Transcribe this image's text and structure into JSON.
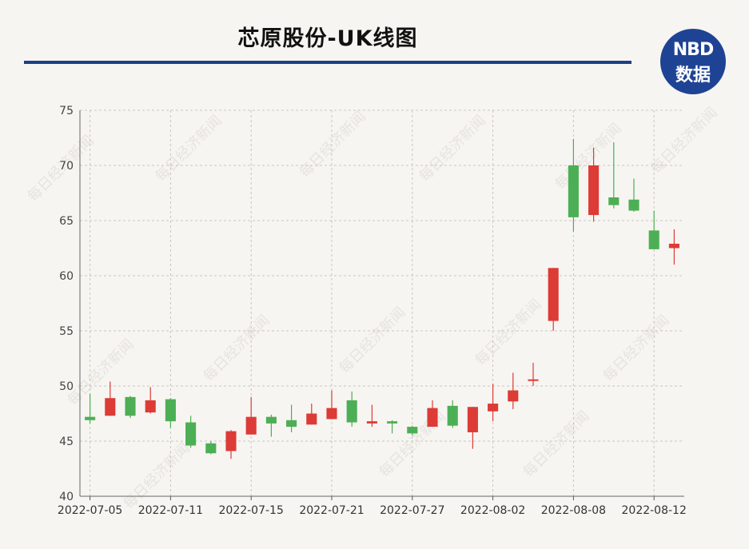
{
  "header": {
    "title": "芯原股份-UK线图",
    "logo_top": "NBD",
    "logo_bottom": "数据"
  },
  "watermark": "每日经济新闻",
  "colors": {
    "up": "#dd3b36",
    "down": "#4caf55",
    "rule": "#1d3f86",
    "logo_bg": "#1f4394",
    "logo_accent": "#e8382f"
  },
  "chart_data": {
    "type": "candlestick",
    "title": "芯原股份-UK线图",
    "ylim": [
      40,
      75
    ],
    "yticks": [
      40,
      45,
      50,
      55,
      60,
      65,
      70,
      75
    ],
    "xticks": [
      "2022-07-05",
      "2022-07-11",
      "2022-07-15",
      "2022-07-21",
      "2022-07-27",
      "2022-08-02",
      "2022-08-08",
      "2022-08-12"
    ],
    "grid": true,
    "candles": [
      {
        "date": "2022-07-05",
        "open": 47.2,
        "close": 46.9,
        "high": 49.3,
        "low": 46.6
      },
      {
        "date": "2022-07-06",
        "open": 47.3,
        "close": 48.9,
        "high": 50.4,
        "low": 47.3
      },
      {
        "date": "2022-07-07",
        "open": 49.0,
        "close": 47.3,
        "high": 49.1,
        "low": 47.1
      },
      {
        "date": "2022-07-08",
        "open": 47.6,
        "close": 48.7,
        "high": 49.9,
        "low": 47.5
      },
      {
        "date": "2022-07-11",
        "open": 48.8,
        "close": 46.8,
        "high": 48.9,
        "low": 46.2
      },
      {
        "date": "2022-07-12",
        "open": 46.7,
        "close": 44.6,
        "high": 47.3,
        "low": 44.4
      },
      {
        "date": "2022-07-13",
        "open": 44.8,
        "close": 43.9,
        "high": 45.0,
        "low": 43.8
      },
      {
        "date": "2022-07-14",
        "open": 44.1,
        "close": 45.9,
        "high": 46.0,
        "low": 43.4
      },
      {
        "date": "2022-07-15",
        "open": 45.6,
        "close": 47.2,
        "high": 49.0,
        "low": 45.6
      },
      {
        "date": "2022-07-18",
        "open": 47.2,
        "close": 46.6,
        "high": 47.4,
        "low": 45.4
      },
      {
        "date": "2022-07-19",
        "open": 46.9,
        "close": 46.3,
        "high": 48.3,
        "low": 45.8
      },
      {
        "date": "2022-07-20",
        "open": 46.5,
        "close": 47.5,
        "high": 48.4,
        "low": 46.5
      },
      {
        "date": "2022-07-21",
        "open": 47.0,
        "close": 48.0,
        "high": 49.6,
        "low": 47.0
      },
      {
        "date": "2022-07-22",
        "open": 48.7,
        "close": 46.7,
        "high": 49.5,
        "low": 46.3
      },
      {
        "date": "2022-07-25",
        "open": 46.6,
        "close": 46.8,
        "high": 48.3,
        "low": 46.3
      },
      {
        "date": "2022-07-26",
        "open": 46.8,
        "close": 46.6,
        "high": 46.9,
        "low": 45.7
      },
      {
        "date": "2022-07-27",
        "open": 46.3,
        "close": 45.7,
        "high": 46.4,
        "low": 45.5
      },
      {
        "date": "2022-07-28",
        "open": 46.3,
        "close": 48.0,
        "high": 48.7,
        "low": 46.3
      },
      {
        "date": "2022-07-29",
        "open": 48.2,
        "close": 46.4,
        "high": 48.7,
        "low": 46.2
      },
      {
        "date": "2022-08-01",
        "open": 45.8,
        "close": 48.1,
        "high": 48.1,
        "low": 44.3
      },
      {
        "date": "2022-08-02",
        "open": 47.7,
        "close": 48.4,
        "high": 50.2,
        "low": 46.8
      },
      {
        "date": "2022-08-03",
        "open": 48.6,
        "close": 49.6,
        "high": 51.2,
        "low": 47.9
      },
      {
        "date": "2022-08-04",
        "open": 50.5,
        "close": 50.6,
        "high": 52.1,
        "low": 50.0
      },
      {
        "date": "2022-08-05",
        "open": 55.9,
        "close": 60.7,
        "high": 60.7,
        "low": 55.0
      },
      {
        "date": "2022-08-08",
        "open": 70.0,
        "close": 65.3,
        "high": 72.4,
        "low": 64.0
      },
      {
        "date": "2022-08-09",
        "open": 65.5,
        "close": 70.0,
        "high": 71.6,
        "low": 64.9
      },
      {
        "date": "2022-08-10",
        "open": 67.1,
        "close": 66.4,
        "high": 72.1,
        "low": 66.1
      },
      {
        "date": "2022-08-11",
        "open": 66.9,
        "close": 65.9,
        "high": 68.8,
        "low": 65.8
      },
      {
        "date": "2022-08-12",
        "open": 64.1,
        "close": 62.4,
        "high": 65.9,
        "low": 62.4
      },
      {
        "date": "2022-08-15",
        "open": 62.5,
        "close": 62.9,
        "high": 64.2,
        "low": 61.0
      }
    ]
  }
}
